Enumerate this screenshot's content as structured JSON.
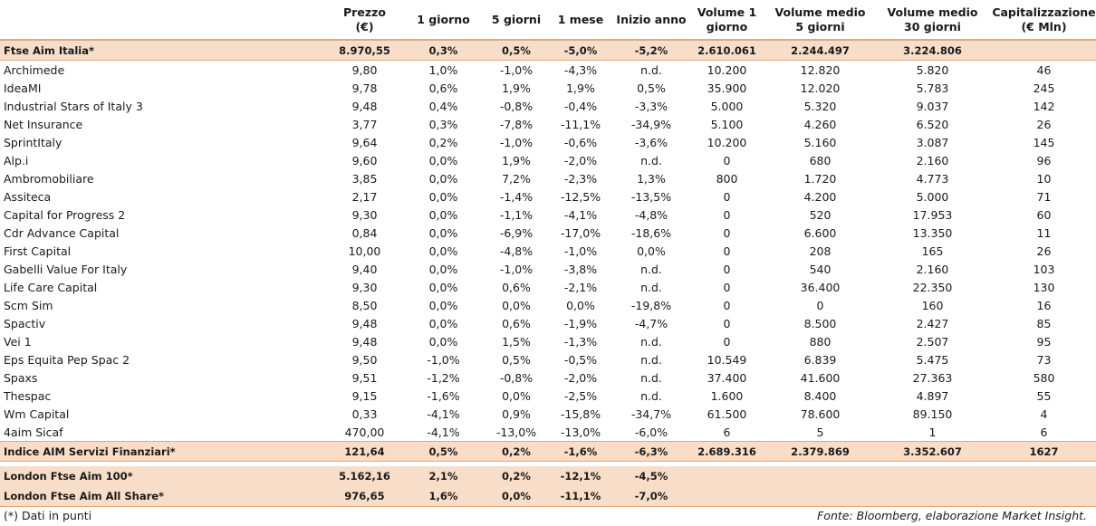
{
  "header": {
    "name": "",
    "price": [
      "Prezzo",
      "(€)"
    ],
    "d1": "1 giorno",
    "d5": "5 giorni",
    "m1": "1 mese",
    "ytd": "Inizio anno",
    "vol1": [
      "Volume 1",
      "giorno"
    ],
    "vol5": [
      "Volume medio",
      "5 giorni"
    ],
    "vol30": [
      "Volume medio",
      "30 giorni"
    ],
    "cap": [
      "Capitalizzazione",
      "(€ Mln)"
    ]
  },
  "index_top": {
    "name": "Ftse Aim Italia*",
    "price": "8.970,55",
    "d1": "0,3%",
    "d5": "0,5%",
    "m1": "-5,0%",
    "ytd": "-5,2%",
    "vol1": "2.610.061",
    "vol5": "2.244.497",
    "vol30": "3.224.806",
    "cap": ""
  },
  "rows": [
    {
      "name": "Archimede",
      "price": "9,80",
      "d1": "1,0%",
      "d5": "-1,0%",
      "m1": "-4,3%",
      "ytd": "n.d.",
      "vol1": "10.200",
      "vol5": "12.820",
      "vol30": "5.820",
      "cap": "46"
    },
    {
      "name": "IdeaMI",
      "price": "9,78",
      "d1": "0,6%",
      "d5": "1,9%",
      "m1": "1,9%",
      "ytd": "0,5%",
      "vol1": "35.900",
      "vol5": "12.020",
      "vol30": "5.783",
      "cap": "245"
    },
    {
      "name": "Industrial Stars of Italy 3",
      "price": "9,48",
      "d1": "0,4%",
      "d5": "-0,8%",
      "m1": "-0,4%",
      "ytd": "-3,3%",
      "vol1": "5.000",
      "vol5": "5.320",
      "vol30": "9.037",
      "cap": "142"
    },
    {
      "name": "Net Insurance",
      "price": "3,77",
      "d1": "0,3%",
      "d5": "-7,8%",
      "m1": "-11,1%",
      "ytd": "-34,9%",
      "vol1": "5.100",
      "vol5": "4.260",
      "vol30": "6.520",
      "cap": "26"
    },
    {
      "name": "SprintItaly",
      "price": "9,64",
      "d1": "0,2%",
      "d5": "-1,0%",
      "m1": "-0,6%",
      "ytd": "-3,6%",
      "vol1": "10.200",
      "vol5": "5.160",
      "vol30": "3.087",
      "cap": "145"
    },
    {
      "name": "Alp.i",
      "price": "9,60",
      "d1": "0,0%",
      "d5": "1,9%",
      "m1": "-2,0%",
      "ytd": "n.d.",
      "vol1": "0",
      "vol5": "680",
      "vol30": "2.160",
      "cap": "96"
    },
    {
      "name": "Ambromobiliare",
      "price": "3,85",
      "d1": "0,0%",
      "d5": "7,2%",
      "m1": "-2,3%",
      "ytd": "1,3%",
      "vol1": "800",
      "vol5": "1.720",
      "vol30": "4.773",
      "cap": "10"
    },
    {
      "name": "Assiteca",
      "price": "2,17",
      "d1": "0,0%",
      "d5": "-1,4%",
      "m1": "-12,5%",
      "ytd": "-13,5%",
      "vol1": "0",
      "vol5": "4.200",
      "vol30": "5.000",
      "cap": "71"
    },
    {
      "name": "Capital for Progress 2",
      "price": "9,30",
      "d1": "0,0%",
      "d5": "-1,1%",
      "m1": "-4,1%",
      "ytd": "-4,8%",
      "vol1": "0",
      "vol5": "520",
      "vol30": "17.953",
      "cap": "60"
    },
    {
      "name": "Cdr Advance Capital",
      "price": "0,84",
      "d1": "0,0%",
      "d5": "-6,9%",
      "m1": "-17,0%",
      "ytd": "-18,6%",
      "vol1": "0",
      "vol5": "6.600",
      "vol30": "13.350",
      "cap": "11"
    },
    {
      "name": "First Capital",
      "price": "10,00",
      "d1": "0,0%",
      "d5": "-4,8%",
      "m1": "-1,0%",
      "ytd": "0,0%",
      "vol1": "0",
      "vol5": "208",
      "vol30": "165",
      "cap": "26"
    },
    {
      "name": "Gabelli Value For Italy",
      "price": "9,40",
      "d1": "0,0%",
      "d5": "-1,0%",
      "m1": "-3,8%",
      "ytd": "n.d.",
      "vol1": "0",
      "vol5": "540",
      "vol30": "2.160",
      "cap": "103"
    },
    {
      "name": "Life Care Capital",
      "price": "9,30",
      "d1": "0,0%",
      "d5": "0,6%",
      "m1": "-2,1%",
      "ytd": "n.d.",
      "vol1": "0",
      "vol5": "36.400",
      "vol30": "22.350",
      "cap": "130"
    },
    {
      "name": "Scm Sim",
      "price": "8,50",
      "d1": "0,0%",
      "d5": "0,0%",
      "m1": "0,0%",
      "ytd": "-19,8%",
      "vol1": "0",
      "vol5": "0",
      "vol30": "160",
      "cap": "16"
    },
    {
      "name": "Spactiv",
      "price": "9,48",
      "d1": "0,0%",
      "d5": "0,6%",
      "m1": "-1,9%",
      "ytd": "-4,7%",
      "vol1": "0",
      "vol5": "8.500",
      "vol30": "2.427",
      "cap": "85"
    },
    {
      "name": "Vei 1",
      "price": "9,48",
      "d1": "0,0%",
      "d5": "1,5%",
      "m1": "-1,3%",
      "ytd": "n.d.",
      "vol1": "0",
      "vol5": "880",
      "vol30": "2.507",
      "cap": "95"
    },
    {
      "name": "Eps Equita Pep Spac 2",
      "price": "9,50",
      "d1": "-1,0%",
      "d5": "0,5%",
      "m1": "-0,5%",
      "ytd": "n.d.",
      "vol1": "10.549",
      "vol5": "6.839",
      "vol30": "5.475",
      "cap": "73"
    },
    {
      "name": "Spaxs",
      "price": "9,51",
      "d1": "-1,2%",
      "d5": "-0,8%",
      "m1": "-2,0%",
      "ytd": "n.d.",
      "vol1": "37.400",
      "vol5": "41.600",
      "vol30": "27.363",
      "cap": "580"
    },
    {
      "name": "Thespac",
      "price": "9,15",
      "d1": "-1,6%",
      "d5": "0,0%",
      "m1": "-2,5%",
      "ytd": "n.d.",
      "vol1": "1.600",
      "vol5": "8.400",
      "vol30": "4.897",
      "cap": "55"
    },
    {
      "name": "Wm Capital",
      "price": "0,33",
      "d1": "-4,1%",
      "d5": "0,9%",
      "m1": "-15,8%",
      "ytd": "-34,7%",
      "vol1": "61.500",
      "vol5": "78.600",
      "vol30": "89.150",
      "cap": "4"
    },
    {
      "name": "4aim Sicaf",
      "price": "470,00",
      "d1": "-4,1%",
      "d5": "-13,0%",
      "m1": "-13,0%",
      "ytd": "-6,0%",
      "vol1": "6",
      "vol5": "5",
      "vol30": "1",
      "cap": "6"
    }
  ],
  "index_sector": {
    "name": "Indice AIM Servizi Finanziari*",
    "price": "121,64",
    "d1": "0,5%",
    "d5": "0,2%",
    "m1": "-1,6%",
    "ytd": "-6,3%",
    "vol1": "2.689.316",
    "vol5": "2.379.869",
    "vol30": "3.352.607",
    "cap": "1627"
  },
  "london": [
    {
      "name": "London Ftse Aim 100*",
      "price": "5.162,16",
      "d1": "2,1%",
      "d5": "0,2%",
      "m1": "-12,1%",
      "ytd": "-4,5%"
    },
    {
      "name": "London Ftse Aim All Share*",
      "price": "976,65",
      "d1": "1,6%",
      "d5": "0,0%",
      "m1": "-11,1%",
      "ytd": "-7,0%"
    }
  ],
  "footer": {
    "note": "(*) Dati in punti",
    "source": "Fonte: Bloomberg, elaborazione Market Insight."
  }
}
